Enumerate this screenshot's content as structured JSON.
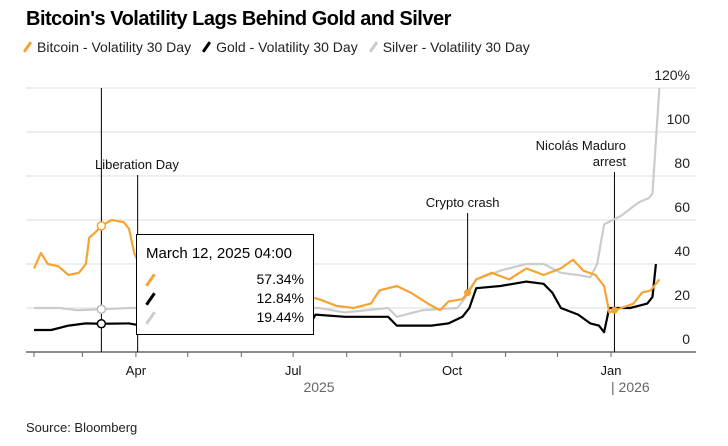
{
  "title": "Bitcoin's Volatility Lags Behind Gold and Silver",
  "source": "Source: Bloomberg",
  "colors": {
    "bitcoin": "#f5a433",
    "gold": "#000000",
    "silver": "#cccccc"
  },
  "chart_data": {
    "type": "line",
    "title": "Bitcoin's Volatility Lags Behind Gold and Silver",
    "xlabel": "",
    "ylabel": "",
    "x_unit": "days since 2025-02-01",
    "xlim": [
      0,
      364
    ],
    "ylim": [
      0,
      120
    ],
    "yticks": [
      {
        "v": 0,
        "label": "0"
      },
      {
        "v": 20,
        "label": "20"
      },
      {
        "v": 40,
        "label": "40"
      },
      {
        "v": 60,
        "label": "60"
      },
      {
        "v": 80,
        "label": "80"
      },
      {
        "v": 100,
        "label": "100"
      },
      {
        "v": 120,
        "label": "120%"
      }
    ],
    "xticks_minor": [
      0,
      28,
      59,
      89,
      120,
      150,
      181,
      212,
      242,
      273,
      303,
      334
    ],
    "xticks": [
      {
        "d": 59,
        "label": "Apr"
      },
      {
        "d": 150,
        "label": "Jul"
      },
      {
        "d": 242,
        "label": "Oct"
      },
      {
        "d": 334,
        "label": "Jan"
      }
    ],
    "year_labels": [
      {
        "d": 165,
        "label": "2025"
      },
      {
        "d": 334,
        "label": "| 2026"
      }
    ],
    "legend_position": "top",
    "series": [
      {
        "name": "Bitcoin - Volatility 30 Day",
        "key": "bitcoin",
        "points": [
          [
            0,
            38
          ],
          [
            4,
            45
          ],
          [
            8,
            40
          ],
          [
            14,
            39
          ],
          [
            20,
            35
          ],
          [
            26,
            36
          ],
          [
            30,
            40
          ],
          [
            32,
            52
          ],
          [
            35,
            54
          ],
          [
            39,
            57.34
          ],
          [
            45,
            60
          ],
          [
            52,
            59
          ],
          [
            55,
            56
          ],
          [
            58,
            45
          ],
          [
            62,
            38
          ],
          [
            100,
            33
          ],
          [
            130,
            30
          ],
          [
            150,
            30
          ],
          [
            155,
            26
          ],
          [
            165,
            24
          ],
          [
            175,
            21
          ],
          [
            185,
            20
          ],
          [
            195,
            22
          ],
          [
            200,
            28
          ],
          [
            210,
            30
          ],
          [
            218,
            27
          ],
          [
            228,
            22
          ],
          [
            235,
            19
          ],
          [
            240,
            23
          ],
          [
            248,
            24
          ],
          [
            251,
            27
          ],
          [
            256,
            33
          ],
          [
            265,
            36
          ],
          [
            275,
            33
          ],
          [
            285,
            38
          ],
          [
            295,
            35
          ],
          [
            305,
            38
          ],
          [
            312,
            42
          ],
          [
            318,
            37
          ],
          [
            325,
            35
          ],
          [
            330,
            30
          ],
          [
            333,
            18
          ],
          [
            340,
            20
          ],
          [
            347,
            22
          ],
          [
            352,
            27
          ],
          [
            357,
            28
          ],
          [
            362,
            33
          ]
        ]
      },
      {
        "name": "Gold - Volatility 30 Day",
        "key": "gold",
        "points": [
          [
            0,
            10
          ],
          [
            10,
            10
          ],
          [
            20,
            12
          ],
          [
            30,
            13
          ],
          [
            39,
            12.84
          ],
          [
            55,
            13
          ],
          [
            62,
            12
          ],
          [
            100,
            12
          ],
          [
            150,
            13
          ],
          [
            160,
            13
          ],
          [
            163,
            17
          ],
          [
            180,
            16
          ],
          [
            205,
            16
          ],
          [
            210,
            12
          ],
          [
            230,
            12
          ],
          [
            240,
            13
          ],
          [
            248,
            16
          ],
          [
            252,
            20
          ],
          [
            256,
            29
          ],
          [
            270,
            30
          ],
          [
            285,
            32
          ],
          [
            295,
            31
          ],
          [
            300,
            27
          ],
          [
            305,
            20
          ],
          [
            315,
            17
          ],
          [
            322,
            13
          ],
          [
            327,
            12
          ],
          [
            330,
            9
          ],
          [
            333,
            20
          ],
          [
            345,
            20
          ],
          [
            355,
            22
          ],
          [
            358,
            25
          ],
          [
            360,
            40
          ]
        ]
      },
      {
        "name": "Silver - Volatility 30 Day",
        "key": "silver",
        "points": [
          [
            0,
            20
          ],
          [
            15,
            20
          ],
          [
            25,
            19
          ],
          [
            39,
            19.44
          ],
          [
            55,
            20
          ],
          [
            100,
            20
          ],
          [
            150,
            20
          ],
          [
            165,
            20
          ],
          [
            180,
            18
          ],
          [
            205,
            20
          ],
          [
            210,
            16
          ],
          [
            225,
            19
          ],
          [
            245,
            20
          ],
          [
            250,
            25
          ],
          [
            256,
            33
          ],
          [
            270,
            37
          ],
          [
            285,
            40
          ],
          [
            295,
            40
          ],
          [
            305,
            36
          ],
          [
            315,
            35
          ],
          [
            322,
            34
          ],
          [
            326,
            40
          ],
          [
            330,
            58
          ],
          [
            340,
            62
          ],
          [
            350,
            68
          ],
          [
            356,
            70
          ],
          [
            358,
            72
          ],
          [
            362,
            120
          ]
        ]
      }
    ],
    "annotations": [
      {
        "label": "Liberation Day",
        "d": 60
      },
      {
        "label": "Crypto crash",
        "d": 251,
        "on": "bitcoin",
        "v": 27
      },
      {
        "label": "Nicolás Maduro",
        "label2": "arrest",
        "d": 336
      }
    ],
    "tooltip": {
      "date": "March 12, 2025 04:00",
      "d": 39,
      "values": [
        "57.34%",
        "12.84%",
        "19.44%"
      ]
    }
  }
}
